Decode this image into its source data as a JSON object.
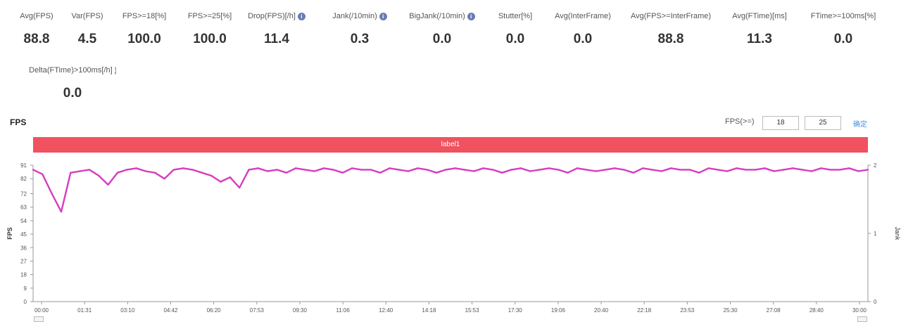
{
  "metrics": [
    {
      "label": "Avg(FPS)",
      "value": "88.8"
    },
    {
      "label": "Var(FPS)",
      "value": "4.5"
    },
    {
      "label": "FPS>=18[%]",
      "value": "100.0"
    },
    {
      "label": "FPS>=25[%]",
      "value": "100.0"
    },
    {
      "label": "Drop(FPS)[/h]",
      "value": "11.4",
      "info": true
    },
    {
      "label": "Jank(/10min)",
      "value": "0.3",
      "info": true
    },
    {
      "label": "BigJank(/10min)",
      "value": "0.0",
      "info": true
    },
    {
      "label": "Stutter[%]",
      "value": "0.0"
    },
    {
      "label": "Avg(InterFrame)",
      "value": "0.0"
    },
    {
      "label": "Avg(FPS>=InterFrame)",
      "value": "88.8"
    },
    {
      "label": "Avg(FTime)[ms]",
      "value": "11.3"
    },
    {
      "label": "FTime>=100ms[%]",
      "value": "0.0"
    },
    {
      "label": "Delta(FTime)>100ms[/h]",
      "value": "0.0",
      "info": true
    }
  ],
  "section_title": "FPS",
  "filter": {
    "label": "FPS(>=)",
    "low": "18",
    "high": "25",
    "confirm": "确定"
  },
  "label_bar": "label1",
  "info_glyph": "i",
  "colors": {
    "series": "#d63cc0",
    "label_bar": "#f0525f",
    "confirm": "#4a90e2",
    "info": "#6b7bb5"
  },
  "chart_data": {
    "type": "line",
    "ylabel": "FPS",
    "y2label": "Jank",
    "ylim": [
      0,
      91
    ],
    "y2lim": [
      0,
      2
    ],
    "yticks": [
      "0",
      "9",
      "18",
      "27",
      "36",
      "45",
      "54",
      "63",
      "72",
      "82",
      "91"
    ],
    "y2ticks": [
      "0",
      "1",
      "2"
    ],
    "xticks": [
      "00:00",
      "01:31",
      "03:10",
      "04:42",
      "06:20",
      "07:53",
      "09:30",
      "11:06",
      "12:40",
      "14:18",
      "15:53",
      "17:30",
      "19:06",
      "20:40",
      "22:18",
      "23:53",
      "25:30",
      "27:08",
      "28:40",
      "30:00"
    ],
    "series": [
      {
        "values": [
          88,
          85,
          72,
          60,
          86,
          87,
          88,
          84,
          78,
          86,
          88,
          89,
          87,
          86,
          82,
          88,
          89,
          88,
          86,
          84,
          80,
          83,
          76,
          88,
          89,
          87,
          88,
          86,
          89,
          88,
          87,
          89,
          88,
          86,
          89,
          88,
          88,
          86,
          89,
          88,
          87,
          89,
          88,
          86,
          88,
          89,
          88,
          87,
          89,
          88,
          86,
          88,
          89,
          87,
          88,
          89,
          88,
          86,
          89,
          88,
          87,
          88,
          89,
          88,
          86,
          89,
          88,
          87,
          89,
          88,
          88,
          86,
          89,
          88,
          87,
          89,
          88,
          88,
          89,
          87,
          88,
          89,
          88,
          87,
          89,
          88,
          88,
          89,
          87,
          88
        ]
      }
    ]
  }
}
